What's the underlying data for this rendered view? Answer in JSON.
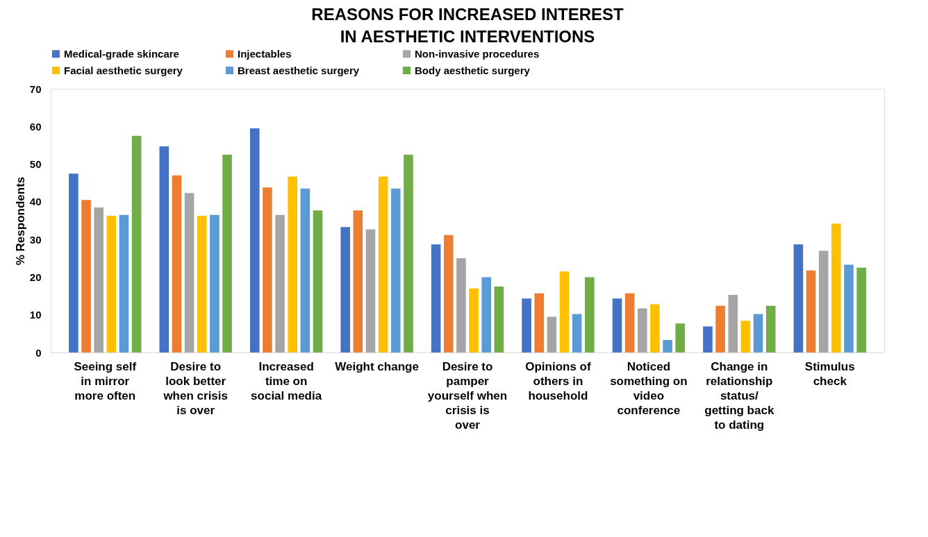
{
  "chart_data": {
    "type": "bar",
    "title": "REASONS FOR INCREASED INTEREST\nIN AESTHETIC INTERVENTIONS",
    "ylabel": "% Respondents",
    "categories": [
      "Seeing self in mirror more often",
      "Desire to look better when crisis is over",
      "Increased time on social media",
      "Weight change",
      "Desire to pamper yourself when crisis is over",
      "Opinions of others in household",
      "Noticed something on video conference",
      "Change in relationship status/ getting back to dating",
      "Stimulus check"
    ],
    "series": [
      {
        "name": "Medical-grade skincare",
        "color": "#4472c4",
        "values": [
          47.5,
          54.7,
          59.5,
          33.3,
          28.7,
          14.3,
          14.3,
          6.9,
          28.7
        ]
      },
      {
        "name": "Injectables",
        "color": "#ed7d31",
        "values": [
          40.5,
          47,
          43.8,
          37.7,
          31.2,
          15.7,
          15.7,
          12.4,
          21.8
        ]
      },
      {
        "name": "Non-invasive procedures",
        "color": "#a5a5a5",
        "values": [
          38.5,
          42.3,
          36.5,
          32.7,
          25,
          9.5,
          11.7,
          15.3,
          27
        ]
      },
      {
        "name": "Facial aesthetic surgery",
        "color": "#ffc000",
        "values": [
          36.3,
          36.3,
          46.7,
          46.7,
          17,
          21.5,
          12.8,
          8.4,
          34.2
        ]
      },
      {
        "name": "Breast aesthetic surgery",
        "color": "#5b9bd5",
        "values": [
          36.5,
          36.5,
          43.5,
          43.5,
          20,
          10.2,
          3.3,
          10.2,
          23.3
        ]
      },
      {
        "name": "Body aesthetic surgery",
        "color": "#70ad47",
        "values": [
          57.5,
          52.5,
          37.7,
          52.5,
          17.5,
          20,
          7.7,
          12.4,
          22.5
        ]
      }
    ],
    "ylim": [
      0,
      70
    ],
    "yticks": [
      0,
      10,
      20,
      30,
      40,
      50,
      60,
      70
    ],
    "grid": false,
    "legend": "top"
  }
}
